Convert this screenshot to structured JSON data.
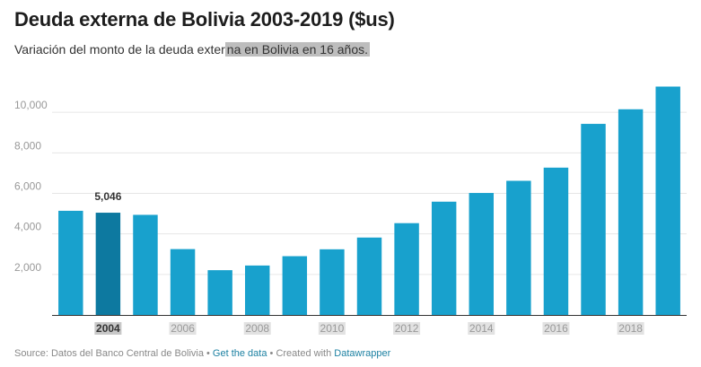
{
  "header": {
    "title": "Deuda externa de Bolivia 2003-2019 ($us)",
    "subtitle_plain": "Variación del monto de la deuda exter",
    "subtitle_highlight": "na en Bolivia en 16 años."
  },
  "footer": {
    "source": "Source: Datos del Banco Central de Bolivia",
    "separator": " • ",
    "get_data": "Get the data",
    "created_with": "Created with",
    "tool": "Datawrapper"
  },
  "colors": {
    "bar": "#18a1cd",
    "bar_highlight": "#0d79a0",
    "grid": "#e6e6e6",
    "axis": "#333333",
    "tick_text": "#999999",
    "tick_text_highlight": "#333333",
    "tick_bg": "#e2e2e2",
    "tick_bg_highlight": "#c8c8c8"
  },
  "chart_data": {
    "type": "bar",
    "categories": [
      "2003",
      "2004",
      "2005",
      "2006",
      "2007",
      "2008",
      "2009",
      "2010",
      "2011",
      "2012",
      "2013",
      "2014",
      "2015",
      "2016",
      "2017",
      "2018",
      "2019"
    ],
    "values": [
      5140,
      5046,
      4940,
      3250,
      2210,
      2440,
      2900,
      3240,
      3820,
      4530,
      5590,
      6020,
      6620,
      7270,
      9430,
      10150,
      11270
    ],
    "x_tick_labels": [
      "2004",
      "2006",
      "2008",
      "2010",
      "2012",
      "2014",
      "2016",
      "2018"
    ],
    "y_ticks": [
      2000,
      4000,
      6000,
      8000,
      10000
    ],
    "y_tick_labels": [
      "2,000",
      "4,000",
      "6,000",
      "8,000",
      "10,000"
    ],
    "ylim": [
      0,
      12000
    ],
    "highlight_category": "2004",
    "data_label": "5,046",
    "grid": true,
    "title": "Deuda externa de Bolivia 2003-2019 ($us)",
    "xlabel": "",
    "ylabel": ""
  }
}
